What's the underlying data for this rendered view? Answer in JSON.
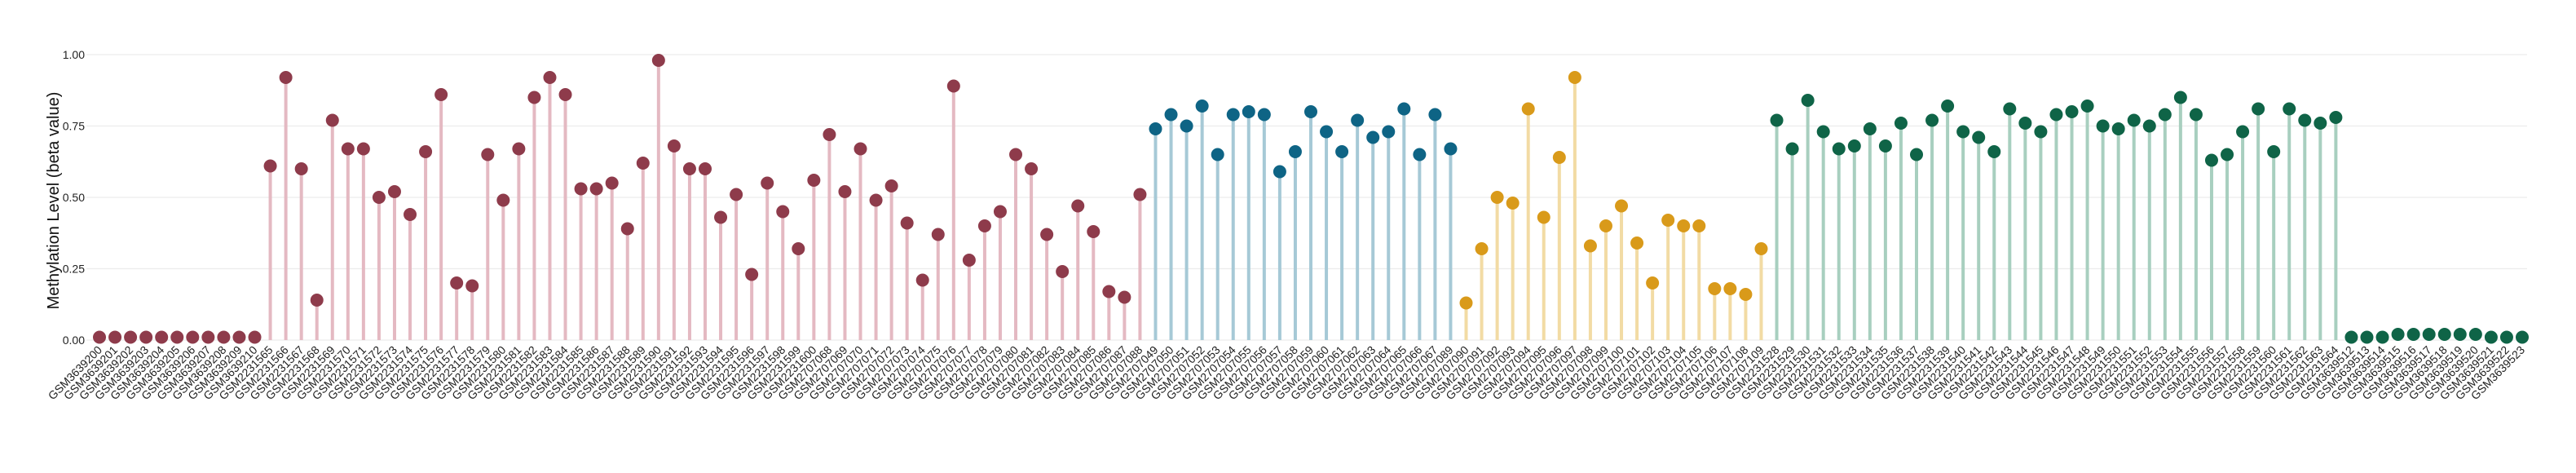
{
  "chart_data": {
    "type": "lollipop",
    "title": "",
    "xlabel": "",
    "ylabel": "Methylation Level (beta value)",
    "ylim": [
      0,
      1
    ],
    "yticks": [
      0.0,
      0.25,
      0.5,
      0.75,
      1.0
    ],
    "ytick_labels": [
      "0.00",
      "0.25",
      "0.50",
      "0.75",
      "1.00"
    ],
    "grid": true,
    "legend": "none",
    "groups": [
      {
        "color": "#8e3b4b",
        "stem_color": "#e4b9c2",
        "count": 11
      },
      {
        "color": "#8e3b4b",
        "stem_color": "#e4b9c2",
        "count": 57
      },
      {
        "color": "#0e6485",
        "stem_color": "#a6c9d6",
        "count": 20
      },
      {
        "color": "#d99a1a",
        "stem_color": "#f2dba4",
        "count": 20
      },
      {
        "color": "#0f6447",
        "stem_color": "#a8cfbf",
        "count": 37
      },
      {
        "color": "#0f6447",
        "stem_color": "#a8cfbf",
        "count": 12
      }
    ],
    "categories": [
      "GSM3639200",
      "GSM3639201",
      "GSM3639202",
      "GSM3639203",
      "GSM3639204",
      "GSM3639205",
      "GSM3639206",
      "GSM3639207",
      "GSM3639208",
      "GSM3639209",
      "GSM3639210",
      "GSM2231565",
      "GSM2231566",
      "GSM2231567",
      "GSM2231568",
      "GSM2231569",
      "GSM2231570",
      "GSM2231571",
      "GSM2231572",
      "GSM2231573",
      "GSM2231574",
      "GSM2231575",
      "GSM2231576",
      "GSM2231577",
      "GSM2231578",
      "GSM2231579",
      "GSM2231580",
      "GSM2231581",
      "GSM2231582",
      "GSM2231583",
      "GSM2231584",
      "GSM2231585",
      "GSM2231586",
      "GSM2231587",
      "GSM2231588",
      "GSM2231589",
      "GSM2231590",
      "GSM2231591",
      "GSM2231592",
      "GSM2231593",
      "GSM2231594",
      "GSM2231595",
      "GSM2231596",
      "GSM2231597",
      "GSM2231598",
      "GSM2231599",
      "GSM2231600",
      "GSM2707068",
      "GSM2707069",
      "GSM2707070",
      "GSM2707071",
      "GSM2707072",
      "GSM2707073",
      "GSM2707074",
      "GSM2707075",
      "GSM2707076",
      "GSM2707077",
      "GSM2707078",
      "GSM2707079",
      "GSM2707080",
      "GSM2707081",
      "GSM2707082",
      "GSM2707083",
      "GSM2707084",
      "GSM2707085",
      "GSM2707086",
      "GSM2707087",
      "GSM2707088",
      "GSM2707049",
      "GSM2707050",
      "GSM2707051",
      "GSM2707052",
      "GSM2707053",
      "GSM2707054",
      "GSM2707055",
      "GSM2707056",
      "GSM2707057",
      "GSM2707058",
      "GSM2707059",
      "GSM2707060",
      "GSM2707061",
      "GSM2707062",
      "GSM2707063",
      "GSM2707064",
      "GSM2707065",
      "GSM2707066",
      "GSM2707067",
      "GSM2707089",
      "GSM2707090",
      "GSM2707091",
      "GSM2707092",
      "GSM2707093",
      "GSM2707094",
      "GSM2707095",
      "GSM2707096",
      "GSM2707097",
      "GSM2707098",
      "GSM2707099",
      "GSM2707100",
      "GSM2707101",
      "GSM2707102",
      "GSM2707103",
      "GSM2707104",
      "GSM2707105",
      "GSM2707106",
      "GSM2707107",
      "GSM2707108",
      "GSM2707109",
      "GSM2231528",
      "GSM2231529",
      "GSM2231530",
      "GSM2231531",
      "GSM2231532",
      "GSM2231533",
      "GSM2231534",
      "GSM2231535",
      "GSM2231536",
      "GSM2231537",
      "GSM2231538",
      "GSM2231539",
      "GSM2231540",
      "GSM2231541",
      "GSM2231542",
      "GSM2231543",
      "GSM2231544",
      "GSM2231545",
      "GSM2231546",
      "GSM2231547",
      "GSM2231548",
      "GSM2231549",
      "GSM2231550",
      "GSM2231551",
      "GSM2231552",
      "GSM2231553",
      "GSM2231554",
      "GSM2231555",
      "GSM2231556",
      "GSM2231557",
      "GSM2231558",
      "GSM2231559",
      "GSM2231560",
      "GSM2231561",
      "GSM2231562",
      "GSM2231563",
      "GSM2231564",
      "GSM3639512",
      "GSM3639513",
      "GSM3639514",
      "GSM3639515",
      "GSM3639516",
      "GSM3639517",
      "GSM3639518",
      "GSM3639519",
      "GSM3639520",
      "GSM3639521",
      "GSM3639522",
      "GSM3639523"
    ],
    "values": [
      0.01,
      0.01,
      0.01,
      0.01,
      0.01,
      0.01,
      0.01,
      0.01,
      0.01,
      0.01,
      0.01,
      0.61,
      0.92,
      0.6,
      0.14,
      0.77,
      0.67,
      0.67,
      0.5,
      0.52,
      0.44,
      0.66,
      0.86,
      0.2,
      0.19,
      0.65,
      0.49,
      0.67,
      0.85,
      0.92,
      0.86,
      0.53,
      0.53,
      0.55,
      0.39,
      0.62,
      0.98,
      0.68,
      0.6,
      0.6,
      0.43,
      0.51,
      0.23,
      0.55,
      0.45,
      0.32,
      0.56,
      0.72,
      0.52,
      0.67,
      0.49,
      0.54,
      0.41,
      0.21,
      0.37,
      0.89,
      0.28,
      0.4,
      0.45,
      0.65,
      0.6,
      0.37,
      0.24,
      0.47,
      0.38,
      0.17,
      0.15,
      0.51,
      0.74,
      0.79,
      0.75,
      0.82,
      0.65,
      0.79,
      0.8,
      0.79,
      0.59,
      0.66,
      0.8,
      0.73,
      0.66,
      0.77,
      0.71,
      0.73,
      0.81,
      0.65,
      0.79,
      0.67,
      0.13,
      0.32,
      0.5,
      0.48,
      0.81,
      0.43,
      0.64,
      0.92,
      0.33,
      0.4,
      0.47,
      0.34,
      0.2,
      0.42,
      0.4,
      0.4,
      0.18,
      0.18,
      0.16,
      0.32,
      0.77,
      0.67,
      0.84,
      0.73,
      0.67,
      0.68,
      0.74,
      0.68,
      0.76,
      0.65,
      0.77,
      0.82,
      0.73,
      0.71,
      0.66,
      0.81,
      0.76,
      0.73,
      0.79,
      0.8,
      0.82,
      0.75,
      0.74,
      0.77,
      0.75,
      0.79,
      0.85,
      0.79,
      0.63,
      0.65,
      0.73,
      0.81,
      0.66,
      0.81,
      0.77,
      0.76,
      0.78,
      0.01,
      0.01,
      0.01,
      0.02,
      0.02,
      0.02,
      0.02,
      0.02,
      0.02,
      0.01,
      0.01,
      0.01
    ]
  }
}
